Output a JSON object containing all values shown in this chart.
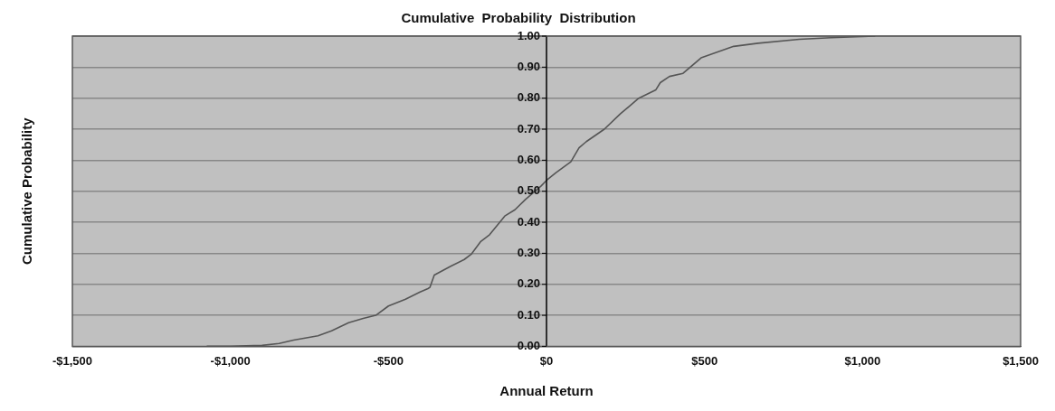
{
  "chart_data": {
    "type": "line",
    "title": "Cumulative  Probability  Distribution",
    "xlabel": "Annual Return",
    "ylabel": "Cumulative Probability",
    "series": [
      {
        "color": "#555555",
        "x": [
          -1075,
          -1000,
          -900,
          -846,
          -800,
          -723,
          -680,
          -626,
          -580,
          -540,
          -500,
          -446,
          -400,
          -375,
          -369,
          -355,
          -303,
          -260,
          -237,
          -209,
          -180,
          -132,
          -100,
          -66,
          -17,
          0,
          30,
          77,
          103,
          126,
          183,
          234,
          263,
          292,
          346,
          360,
          389,
          432,
          489,
          592,
          669,
          800,
          900,
          1040
        ],
        "values": [
          0,
          0,
          0.003,
          0.009,
          0.02,
          0.034,
          0.05,
          0.076,
          0.09,
          0.1,
          0.13,
          0.152,
          0.175,
          0.186,
          0.19,
          0.23,
          0.258,
          0.28,
          0.298,
          0.337,
          0.36,
          0.42,
          0.44,
          0.474,
          0.517,
          0.535,
          0.56,
          0.595,
          0.64,
          0.66,
          0.7,
          0.75,
          0.775,
          0.8,
          0.827,
          0.85,
          0.87,
          0.88,
          0.93,
          0.967,
          0.977,
          0.99,
          0.995,
          1.0
        ]
      }
    ],
    "xlim": [
      -1500,
      1500
    ],
    "xticks": [
      {
        "value": -1500,
        "label": "-$1,500"
      },
      {
        "value": -1000,
        "label": "-$1,000"
      },
      {
        "value": -500,
        "label": "-$500"
      },
      {
        "value": 0,
        "label": "$0"
      },
      {
        "value": 500,
        "label": "$500"
      },
      {
        "value": 1000,
        "label": "$1,000"
      },
      {
        "value": 1500,
        "label": "$1,500"
      }
    ],
    "ylim": [
      0,
      1
    ],
    "yticks": [
      {
        "value": 0,
        "label": "0.00"
      },
      {
        "value": 0.1,
        "label": "0.10"
      },
      {
        "value": 0.2,
        "label": "0.20"
      },
      {
        "value": 0.3,
        "label": "0.30"
      },
      {
        "value": 0.4,
        "label": "0.40"
      },
      {
        "value": 0.5,
        "label": "0.50"
      },
      {
        "value": 0.6,
        "label": "0.60"
      },
      {
        "value": 0.7,
        "label": "0.70"
      },
      {
        "value": 0.8,
        "label": "0.80"
      },
      {
        "value": 0.9,
        "label": "0.90"
      },
      {
        "value": 1,
        "label": "1.00"
      }
    ],
    "grid": "y",
    "legend": false,
    "marker": "none",
    "line_style": "solid"
  }
}
